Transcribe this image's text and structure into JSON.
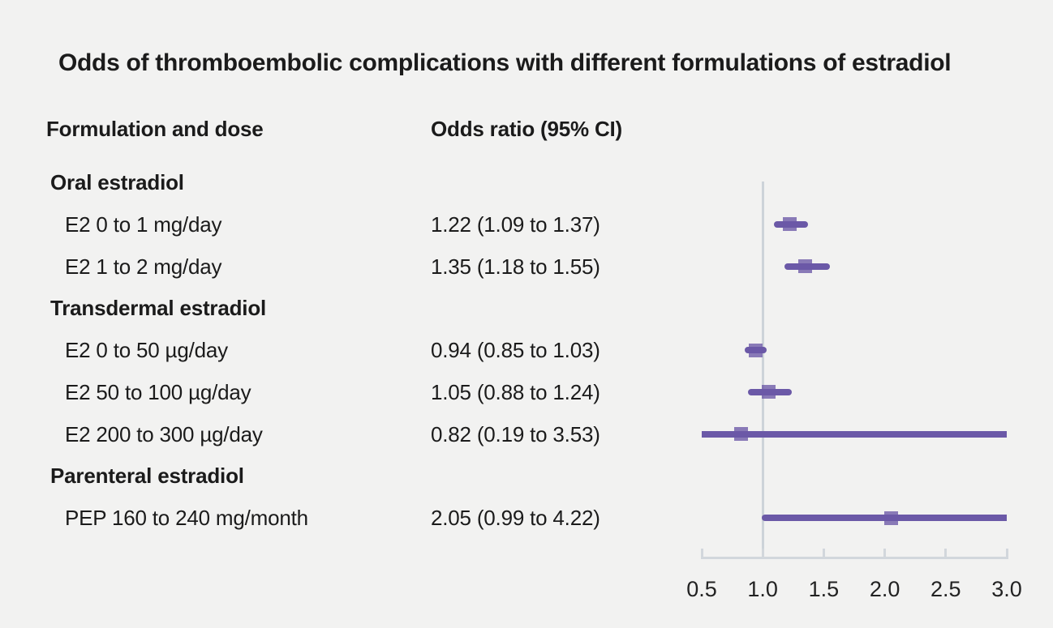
{
  "header": {
    "formulation_col": "Formulation and dose",
    "odds_col": "Odds ratio (95% CI)"
  },
  "colors": {
    "background": "#f2f2f1",
    "text": "#1b1b1b",
    "purple": "#6b59a7",
    "marker_fill_rgba": "rgba(107,89,167,0.78)",
    "reference_line": "#cdd3d9",
    "axis": "#d2d7dc",
    "tick_label": "#222222"
  },
  "chart_data": {
    "type": "scatter",
    "variant": "forest-plot",
    "title": "Odds of thromboembolic complications with different formulations of estradiol",
    "xlabel": "",
    "xlim": [
      0.5,
      3.0
    ],
    "x_ticks": [
      0.5,
      1.0,
      1.5,
      2.0,
      2.5,
      3.0
    ],
    "x_tick_labels": [
      "0.5",
      "1.0",
      "1.5",
      "2.0",
      "2.5",
      "3.0"
    ],
    "reference_line_x": 1.0,
    "grid": false,
    "legend": false,
    "groups": [
      {
        "name": "Oral estradiol",
        "items": [
          {
            "label": "E2 0 to 1 mg/day",
            "or": 1.22,
            "ci_low": 1.09,
            "ci_high": 1.37,
            "display": "1.22 (1.09 to 1.37)"
          },
          {
            "label": "E2 1 to 2 mg/day",
            "or": 1.35,
            "ci_low": 1.18,
            "ci_high": 1.55,
            "display": "1.35 (1.18 to 1.55)"
          }
        ]
      },
      {
        "name": "Transdermal estradiol",
        "items": [
          {
            "label": "E2 0 to 50 µg/day",
            "or": 0.94,
            "ci_low": 0.85,
            "ci_high": 1.03,
            "display": "0.94 (0.85 to 1.03)"
          },
          {
            "label": "E2 50 to 100 µg/day",
            "or": 1.05,
            "ci_low": 0.88,
            "ci_high": 1.24,
            "display": "1.05 (0.88 to 1.24)"
          },
          {
            "label": "E2 200 to 300 µg/day",
            "or": 0.82,
            "ci_low": 0.19,
            "ci_high": 3.53,
            "display": "0.82 (0.19 to 3.53)"
          }
        ]
      },
      {
        "name": "Parenteral estradiol",
        "items": [
          {
            "label": "PEP 160 to 240 mg/month",
            "or": 2.05,
            "ci_low": 0.99,
            "ci_high": 4.22,
            "display": "2.05 (0.99 to 4.22)"
          }
        ]
      }
    ]
  }
}
